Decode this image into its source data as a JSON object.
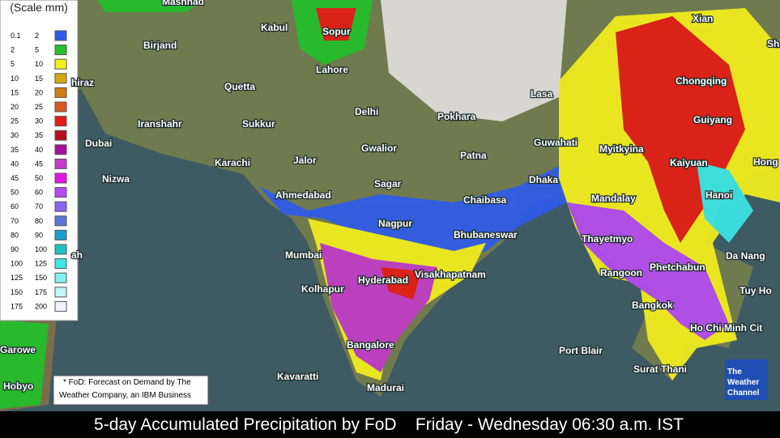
{
  "legend": {
    "title": "(Scale mm)",
    "rows": [
      {
        "low": 0.1,
        "high": 2,
        "color": "#2f5bea"
      },
      {
        "low": 2,
        "high": 5,
        "color": "#22c02a"
      },
      {
        "low": 5,
        "high": 10,
        "color": "#f4f01e"
      },
      {
        "low": 10,
        "high": 15,
        "color": "#d2aa14"
      },
      {
        "low": 15,
        "high": 20,
        "color": "#d27d14"
      },
      {
        "low": 20,
        "high": 25,
        "color": "#d8581e"
      },
      {
        "low": 25,
        "high": 30,
        "color": "#e21b14"
      },
      {
        "low": 30,
        "high": 35,
        "color": "#b40f1e"
      },
      {
        "low": 35,
        "high": 40,
        "color": "#a8109e"
      },
      {
        "low": 40,
        "high": 45,
        "color": "#c23cc8"
      },
      {
        "low": 45,
        "high": 50,
        "color": "#e614e6"
      },
      {
        "low": 50,
        "high": 60,
        "color": "#b64cf0"
      },
      {
        "low": 60,
        "high": 70,
        "color": "#8a64f0"
      },
      {
        "low": 70,
        "high": 80,
        "color": "#5a78d8"
      },
      {
        "low": 80,
        "high": 90,
        "color": "#1e9ec8"
      },
      {
        "low": 90,
        "high": 100,
        "color": "#1ec3c3"
      },
      {
        "low": 100,
        "high": 125,
        "color": "#3ce6e6"
      },
      {
        "low": 125,
        "high": 150,
        "color": "#82f0f0"
      },
      {
        "low": 150,
        "high": 175,
        "color": "#c0f8f8"
      },
      {
        "low": 175,
        "high": 200,
        "color": "#f2f2ff"
      }
    ]
  },
  "cities": [
    "Mashhad",
    "Kabul",
    "Sopur",
    "Xian",
    "Sh",
    "Birjand",
    "Lahore",
    "Chongqing",
    "hiraz",
    "Quetta",
    "Lasa",
    "Delhi",
    "Pokhara",
    "Guiyang",
    "Iranshahr",
    "Sukkur",
    "Gwalior",
    "Guwahati",
    "Myitkyina",
    "Dubai",
    "Patna",
    "Jalor",
    "Karachi",
    "Kaiyuan",
    "Hong",
    "Nizwa",
    "Dhaka",
    "Sagar",
    "Hanoi",
    "Ahmedabad",
    "Chaibasa",
    "Mandalay",
    "Nagpur",
    "Bhubaneswar",
    "Thayetmyo",
    "ah",
    "Mumbai",
    "Da Nang",
    "Phetchabun",
    "Visakhapatnam",
    "Rangoon",
    "Hyderabad",
    "Kolhapur",
    "Tuy Ho",
    "Bangkok",
    "Ho Chi Minh Cit",
    "Bangalore",
    "Port Blair",
    "Garowe",
    "Surat Thani",
    "Kavaratti",
    "Madurai",
    "Hobyo"
  ],
  "footnote": [
    "* FoD: Forecast on Demand by The",
    "Weather Company, an IBM Business"
  ],
  "caption": "5-day Accumulated Precipitation by FoD    Friday - Wednesday 06:30 a.m. IST",
  "logo": [
    "The",
    "Weather",
    "Channel"
  ]
}
